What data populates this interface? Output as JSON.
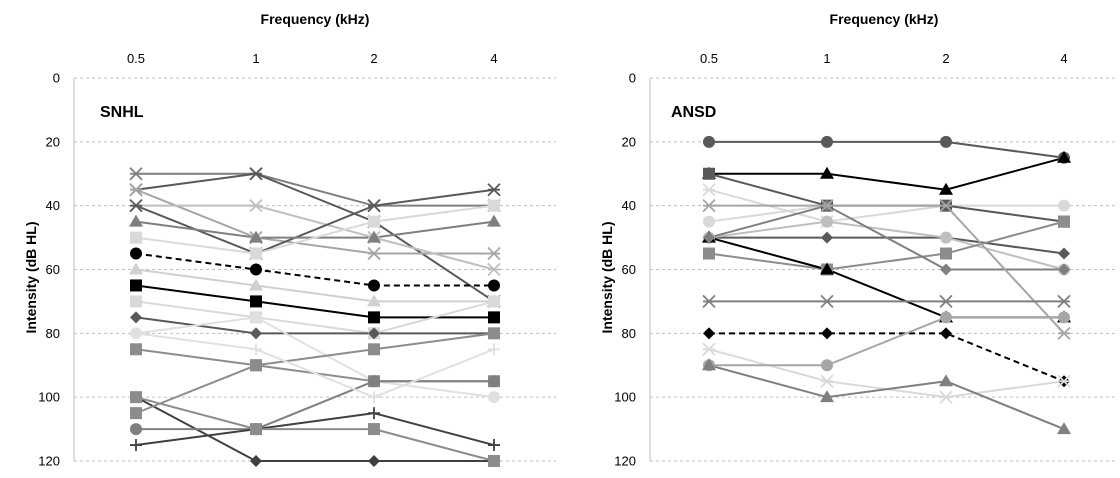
{
  "chart_data": [
    {
      "type": "line",
      "panel_label": "SNHL",
      "xlabel": "Frequency (kHz)",
      "ylabel": "Intensity (dB HL)",
      "categories": [
        "0.5",
        "1",
        "2",
        "4"
      ],
      "y_ticks": [
        0,
        20,
        40,
        60,
        80,
        100,
        120
      ],
      "ylim": [
        0,
        120
      ],
      "y_inverted": true,
      "x_axis_position": "top",
      "grid": "horizontal dashed",
      "series": [
        {
          "values": [
            30,
            30,
            40,
            40
          ],
          "color": "#7f7f7f",
          "width": 2,
          "marker": "star"
        },
        {
          "values": [
            35,
            30,
            45,
            70
          ],
          "color": "#595959",
          "width": 2,
          "marker": "star"
        },
        {
          "values": [
            35,
            50,
            55,
            55
          ],
          "color": "#a6a6a6",
          "width": 2,
          "marker": "star"
        },
        {
          "values": [
            40,
            40,
            50,
            60
          ],
          "color": "#bfbfbf",
          "width": 2,
          "marker": "star"
        },
        {
          "values": [
            40,
            55,
            40,
            35
          ],
          "color": "#595959",
          "width": 2,
          "marker": "star"
        },
        {
          "values": [
            45,
            50,
            50,
            45
          ],
          "color": "#7f7f7f",
          "width": 2,
          "marker": "triangle"
        },
        {
          "values": [
            50,
            55,
            45,
            40
          ],
          "color": "#d9d9d9",
          "width": 2,
          "marker": "square"
        },
        {
          "values": [
            55,
            60,
            65,
            65
          ],
          "color": "#000000",
          "width": 2,
          "marker": "circle",
          "dash": "6,4"
        },
        {
          "values": [
            60,
            65,
            70,
            70
          ],
          "color": "#d0d0d0",
          "width": 2,
          "marker": "triangle"
        },
        {
          "values": [
            65,
            70,
            75,
            75
          ],
          "color": "#000000",
          "width": 2,
          "marker": "square"
        },
        {
          "values": [
            70,
            75,
            80,
            70
          ],
          "color": "#d9d9d9",
          "width": 2,
          "marker": "square"
        },
        {
          "values": [
            75,
            80,
            80,
            80
          ],
          "color": "#595959",
          "width": 2,
          "marker": "diamond"
        },
        {
          "values": [
            80,
            75,
            95,
            100
          ],
          "color": "#e0e0e0",
          "width": 2,
          "marker": "circle"
        },
        {
          "values": [
            85,
            90,
            95,
            95
          ],
          "color": "#8c8c8c",
          "width": 2,
          "marker": "square"
        },
        {
          "values": [
            100,
            120,
            120,
            120
          ],
          "color": "#404040",
          "width": 2,
          "marker": "diamond"
        },
        {
          "values": [
            105,
            90,
            85,
            80
          ],
          "color": "#8c8c8c",
          "width": 2,
          "marker": "square"
        },
        {
          "values": [
            110,
            110,
            95,
            95
          ],
          "color": "#7f7f7f",
          "width": 2,
          "marker": "circle"
        },
        {
          "values": [
            115,
            110,
            105,
            115
          ],
          "color": "#404040",
          "width": 2,
          "marker": "plus"
        },
        {
          "values": [
            100,
            110,
            110,
            120
          ],
          "color": "#8c8c8c",
          "width": 2,
          "marker": "square"
        },
        {
          "values": [
            80,
            85,
            100,
            85
          ],
          "color": "#e0e0e0",
          "width": 2,
          "marker": "plus"
        }
      ]
    },
    {
      "type": "line",
      "panel_label": "ANSD",
      "xlabel": "Frequency (kHz)",
      "ylabel": "Intensity (dB HL)",
      "categories": [
        "0.5",
        "1",
        "2",
        "4"
      ],
      "y_ticks": [
        0,
        20,
        40,
        60,
        80,
        100,
        120
      ],
      "ylim": [
        0,
        120
      ],
      "y_inverted": true,
      "x_axis_position": "top",
      "grid": "horizontal dashed",
      "series": [
        {
          "values": [
            20,
            20,
            20,
            25
          ],
          "color": "#595959",
          "width": 2,
          "marker": "circle"
        },
        {
          "values": [
            30,
            30,
            35,
            25
          ],
          "color": "#000000",
          "width": 2,
          "marker": "triangle"
        },
        {
          "values": [
            35,
            45,
            40,
            45
          ],
          "color": "#d9d9d9",
          "width": 2,
          "marker": "star"
        },
        {
          "values": [
            45,
            40,
            40,
            40
          ],
          "color": "#d9d9d9",
          "width": 2,
          "marker": "circle"
        },
        {
          "values": [
            30,
            40,
            40,
            45
          ],
          "color": "#595959",
          "width": 2,
          "marker": "square"
        },
        {
          "values": [
            50,
            50,
            50,
            55
          ],
          "color": "#595959",
          "width": 2,
          "marker": "diamond"
        },
        {
          "values": [
            50,
            45,
            50,
            60
          ],
          "color": "#bfbfbf",
          "width": 2,
          "marker": "circle"
        },
        {
          "values": [
            55,
            60,
            55,
            45
          ],
          "color": "#8c8c8c",
          "width": 2,
          "marker": "square"
        },
        {
          "values": [
            50,
            60,
            75,
            75
          ],
          "color": "#000000",
          "width": 2,
          "marker": "triangle"
        },
        {
          "values": [
            50,
            40,
            60,
            60
          ],
          "color": "#7f7f7f",
          "width": 2,
          "marker": "diamond"
        },
        {
          "values": [
            40,
            40,
            40,
            80
          ],
          "color": "#a6a6a6",
          "width": 2,
          "marker": "star"
        },
        {
          "values": [
            70,
            70,
            70,
            70
          ],
          "color": "#7f7f7f",
          "width": 2,
          "marker": "star"
        },
        {
          "values": [
            80,
            80,
            80,
            95
          ],
          "color": "#000000",
          "width": 2,
          "marker": "diamond",
          "dash": "6,4"
        },
        {
          "values": [
            85,
            95,
            100,
            95
          ],
          "color": "#d9d9d9",
          "width": 2,
          "marker": "star"
        },
        {
          "values": [
            90,
            90,
            75,
            75
          ],
          "color": "#a6a6a6",
          "width": 2,
          "marker": "circle"
        },
        {
          "values": [
            90,
            100,
            95,
            110
          ],
          "color": "#7f7f7f",
          "width": 2,
          "marker": "triangle"
        }
      ]
    }
  ]
}
